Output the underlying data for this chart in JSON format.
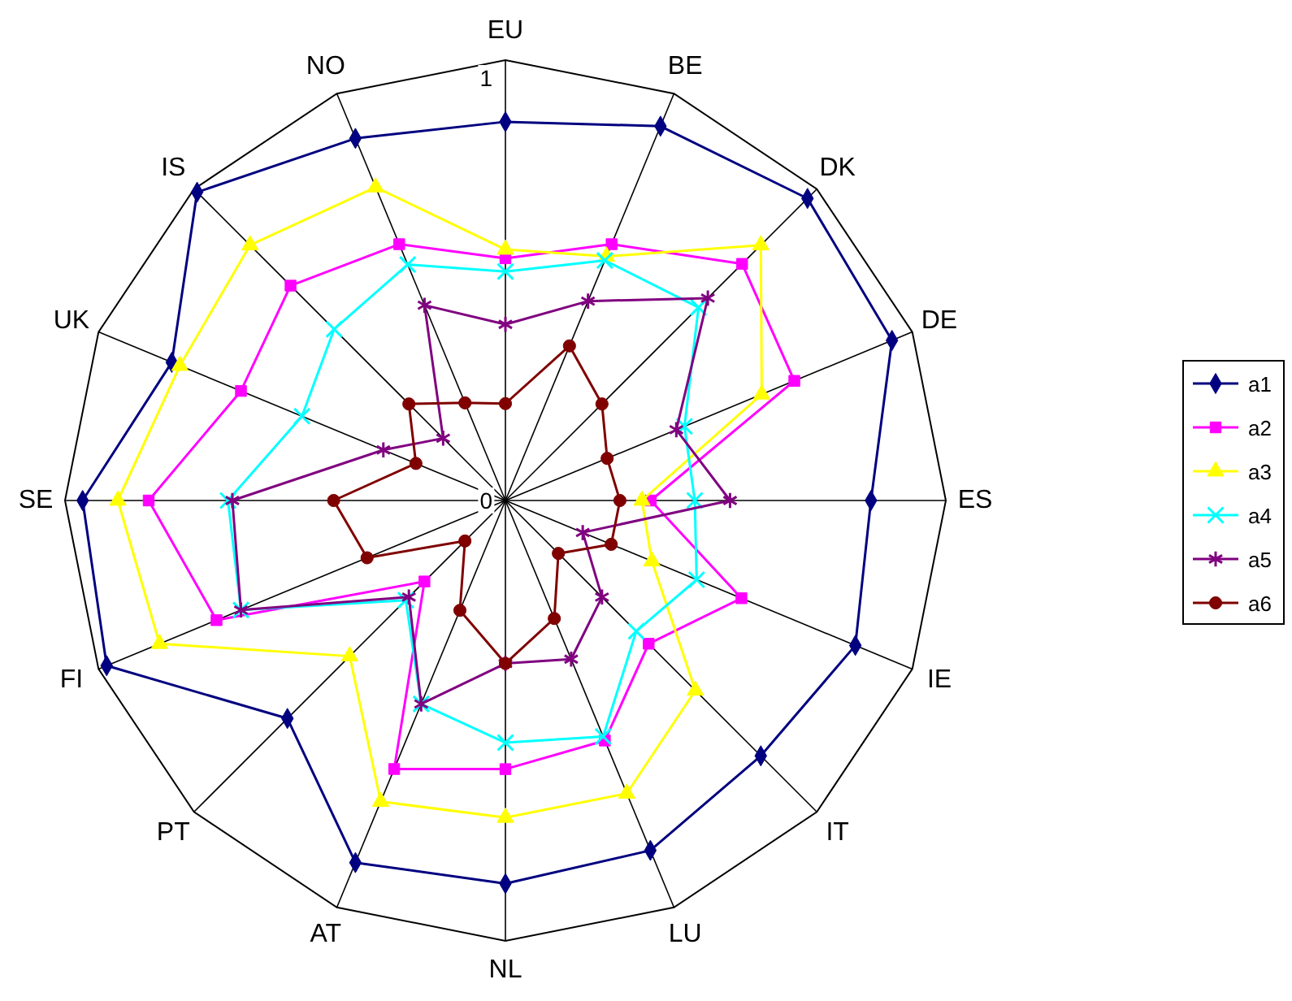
{
  "chart_data": {
    "type": "radar",
    "categories": [
      "EU",
      "BE",
      "DK",
      "DE",
      "ES",
      "IE",
      "IT",
      "LU",
      "NL",
      "AT",
      "PT",
      "FI",
      "SE",
      "UK",
      "IS",
      "NO"
    ],
    "ylim": [
      0,
      1
    ],
    "yticks": [
      0,
      1
    ],
    "grid": true,
    "legend": "right",
    "series": [
      {
        "name": "a1",
        "color": "#000080",
        "marker": "diamond",
        "values": [
          0.86,
          0.92,
          0.97,
          0.95,
          0.83,
          0.86,
          0.82,
          0.86,
          0.87,
          0.89,
          0.7,
          0.98,
          0.96,
          0.82,
          0.99,
          0.89
        ]
      },
      {
        "name": "a2",
        "color": "#ff00ff",
        "marker": "square",
        "values": [
          0.55,
          0.63,
          0.76,
          0.71,
          0.33,
          0.58,
          0.46,
          0.59,
          0.61,
          0.66,
          0.26,
          0.71,
          0.81,
          0.65,
          0.69,
          0.63
        ]
      },
      {
        "name": "a3",
        "color": "#ffff00",
        "marker": "triangle",
        "values": [
          0.57,
          0.6,
          0.82,
          0.63,
          0.31,
          0.36,
          0.61,
          0.72,
          0.72,
          0.74,
          0.5,
          0.85,
          0.88,
          0.8,
          0.82,
          0.77
        ]
      },
      {
        "name": "a4",
        "color": "#00ffff",
        "marker": "cross",
        "values": [
          0.52,
          0.59,
          0.62,
          0.44,
          0.43,
          0.47,
          0.42,
          0.58,
          0.55,
          0.5,
          0.32,
          0.65,
          0.63,
          0.5,
          0.55,
          0.58
        ]
      },
      {
        "name": "a5",
        "color": "#800080",
        "marker": "star",
        "values": [
          0.4,
          0.49,
          0.65,
          0.42,
          0.51,
          0.19,
          0.31,
          0.39,
          0.37,
          0.5,
          0.31,
          0.65,
          0.62,
          0.3,
          0.2,
          0.48
        ]
      },
      {
        "name": "a6",
        "color": "#800000",
        "marker": "circle",
        "values": [
          0.22,
          0.38,
          0.31,
          0.25,
          0.26,
          0.26,
          0.17,
          0.29,
          0.37,
          0.27,
          0.13,
          0.34,
          0.39,
          0.22,
          0.31,
          0.24
        ]
      }
    ]
  }
}
